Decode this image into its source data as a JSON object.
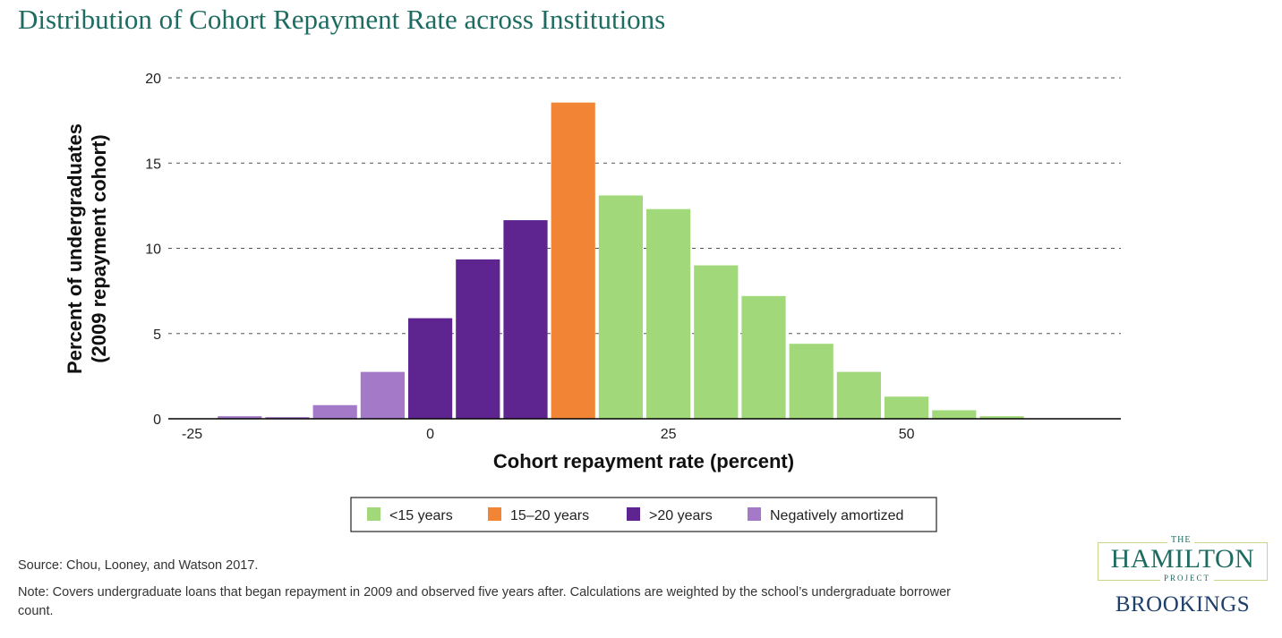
{
  "chart_data": {
    "type": "bar",
    "title": "Distribution of Cohort Repayment Rate across Institutions",
    "xlabel": "Cohort repayment rate (percent)",
    "ylabel_line1": "Percent of undergraduates",
    "ylabel_line2": "(2009 repayment cohort)",
    "xlim": [
      -27.5,
      72.5
    ],
    "ylim": [
      0,
      20
    ],
    "xticks": [
      -25,
      0,
      25,
      50
    ],
    "yticks": [
      0,
      5,
      10,
      15,
      20
    ],
    "grid": true,
    "bin_width": 5,
    "bins": [
      {
        "x": -20,
        "value": 0.15,
        "group": "negative"
      },
      {
        "x": -15,
        "value": 0.1,
        "group": "negative"
      },
      {
        "x": -10,
        "value": 0.8,
        "group": "negative"
      },
      {
        "x": -5,
        "value": 2.75,
        "group": "negative"
      },
      {
        "x": 0,
        "value": 5.9,
        "group": "over20"
      },
      {
        "x": 5,
        "value": 9.35,
        "group": "over20"
      },
      {
        "x": 10,
        "value": 11.65,
        "group": "over20"
      },
      {
        "x": 15,
        "value": 18.55,
        "group": "mid"
      },
      {
        "x": 20,
        "value": 13.1,
        "group": "under15"
      },
      {
        "x": 25,
        "value": 12.3,
        "group": "under15"
      },
      {
        "x": 30,
        "value": 9.0,
        "group": "under15"
      },
      {
        "x": 35,
        "value": 7.2,
        "group": "under15"
      },
      {
        "x": 40,
        "value": 4.4,
        "group": "under15"
      },
      {
        "x": 45,
        "value": 2.75,
        "group": "under15"
      },
      {
        "x": 50,
        "value": 1.3,
        "group": "under15"
      },
      {
        "x": 55,
        "value": 0.5,
        "group": "under15"
      },
      {
        "x": 60,
        "value": 0.15,
        "group": "under15"
      }
    ],
    "series": [
      {
        "key": "under15",
        "name": "<15 years",
        "color": "#a1d97a"
      },
      {
        "key": "mid",
        "name": "15–20 years",
        "color": "#f28436"
      },
      {
        "key": "over20",
        "name": ">20 years",
        "color": "#5e2590"
      },
      {
        "key": "negative",
        "name": "Negatively amortized",
        "color": "#a47ac8"
      }
    ],
    "legend_position": "bottom-center"
  },
  "footer": {
    "source": "Source: Chou, Looney, and Watson 2017.",
    "note": "Note: Covers undergraduate loans that began repayment in 2009 and observed five years after. Calculations are weighted by the school’s undergraduate borrower count."
  },
  "logo": {
    "the": "THE",
    "hamilton": "HAMILTON",
    "project": "PROJECT",
    "brookings": "BROOKINGS"
  },
  "colors": {
    "title": "#1e6b62",
    "axis": "#000000",
    "grid": "#555555"
  }
}
